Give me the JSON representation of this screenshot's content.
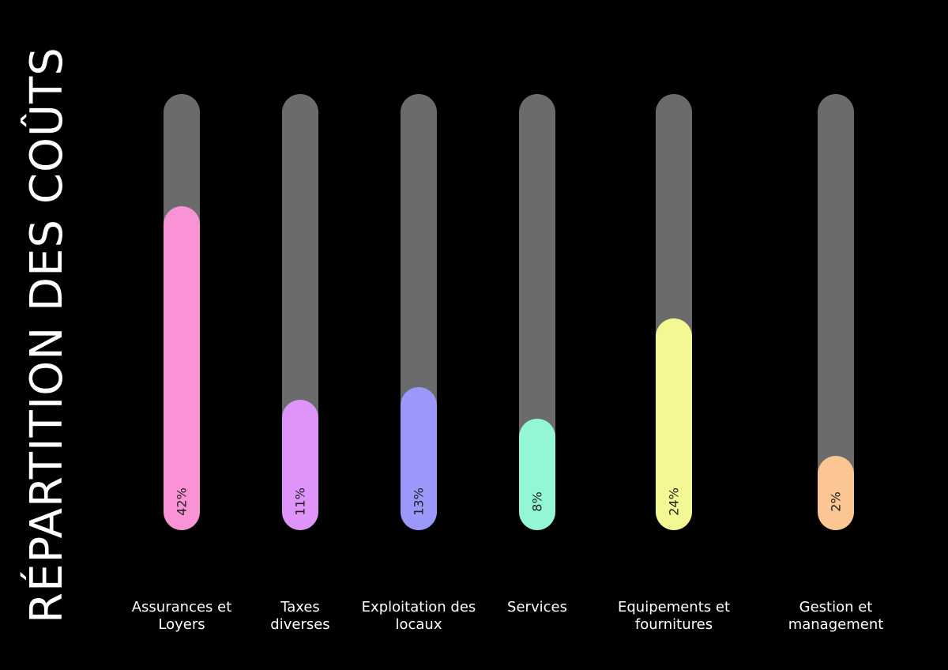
{
  "chart_data": {
    "type": "bar",
    "title": "RÉPARTITION DES COÛTS",
    "xlabel": "",
    "ylabel": "",
    "ylim": [
      0,
      100
    ],
    "categories": [
      "Assurances et Loyers",
      "Taxes diverses",
      "Exploitation des locaux",
      "Services",
      "Equipements et fournitures",
      "Gestion et management"
    ],
    "values": [
      42,
      11,
      13,
      8,
      24,
      2
    ],
    "value_labels": [
      "42%",
      "11%",
      "13%",
      "8%",
      "24%",
      "2%"
    ],
    "colors": [
      "#f993d5",
      "#df94fa",
      "#9a99fb",
      "#93f7d6",
      "#f3f894",
      "#fbc594"
    ],
    "track_color": "#6b6b6b",
    "background": "#000000",
    "orientation": "vertical",
    "grid": false,
    "legend": "none"
  }
}
